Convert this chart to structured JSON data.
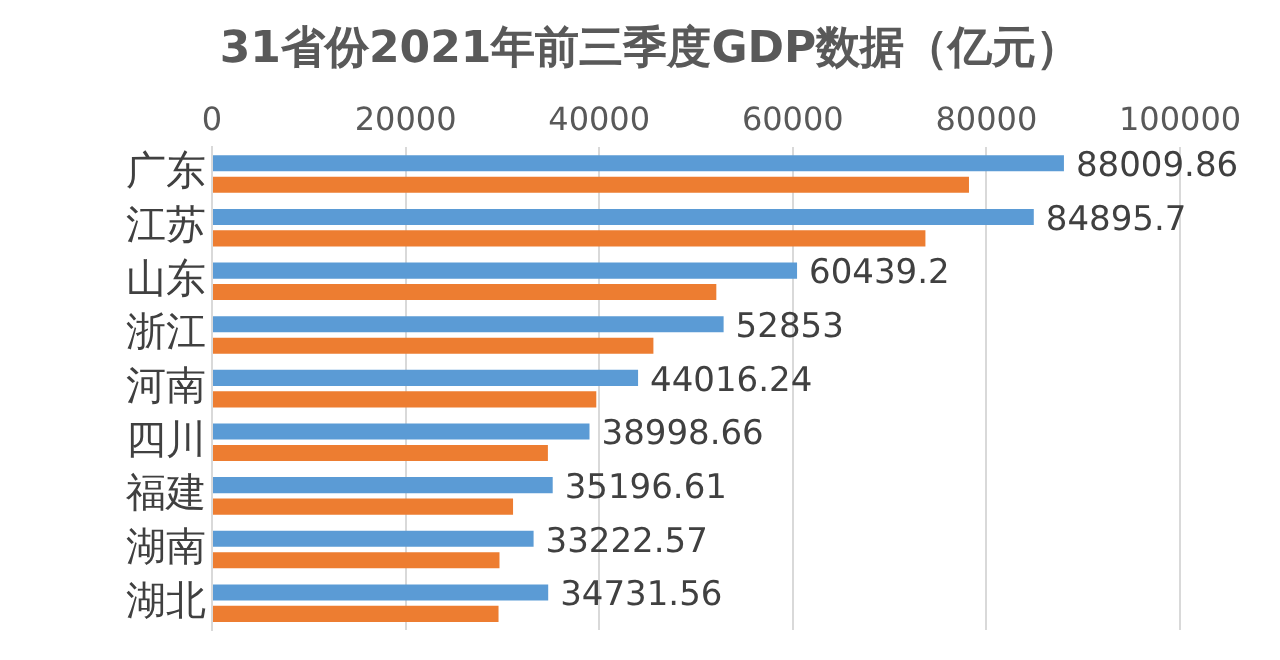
{
  "chart_data": {
    "type": "bar",
    "title": "31省份2021年前三季度GDP数据（亿元）",
    "orientation": "horizontal",
    "categories": [
      "广东",
      "江苏",
      "山东",
      "浙江",
      "河南",
      "四川",
      "福建",
      "湖南",
      "湖北"
    ],
    "series": [
      {
        "color": "#5b9bd5",
        "values": [
          88009.86,
          84895.7,
          60439.2,
          52853,
          44016.24,
          38998.66,
          35196.61,
          33222.57,
          34731.56
        ],
        "value_labels": [
          "88009.86",
          "84895.7",
          "60439.2",
          "52853",
          "44016.24",
          "38998.66",
          "35196.61",
          "33222.57",
          "34731.56"
        ]
      },
      {
        "color": "#ed7d31",
        "values": [
          78200,
          73700,
          52100,
          45600,
          39700,
          34700,
          31100,
          29700,
          29600
        ]
      }
    ],
    "xlim": [
      0,
      100000
    ],
    "xticks": [
      0,
      20000,
      40000,
      60000,
      80000,
      100000
    ],
    "grid": "x",
    "legend": false
  }
}
